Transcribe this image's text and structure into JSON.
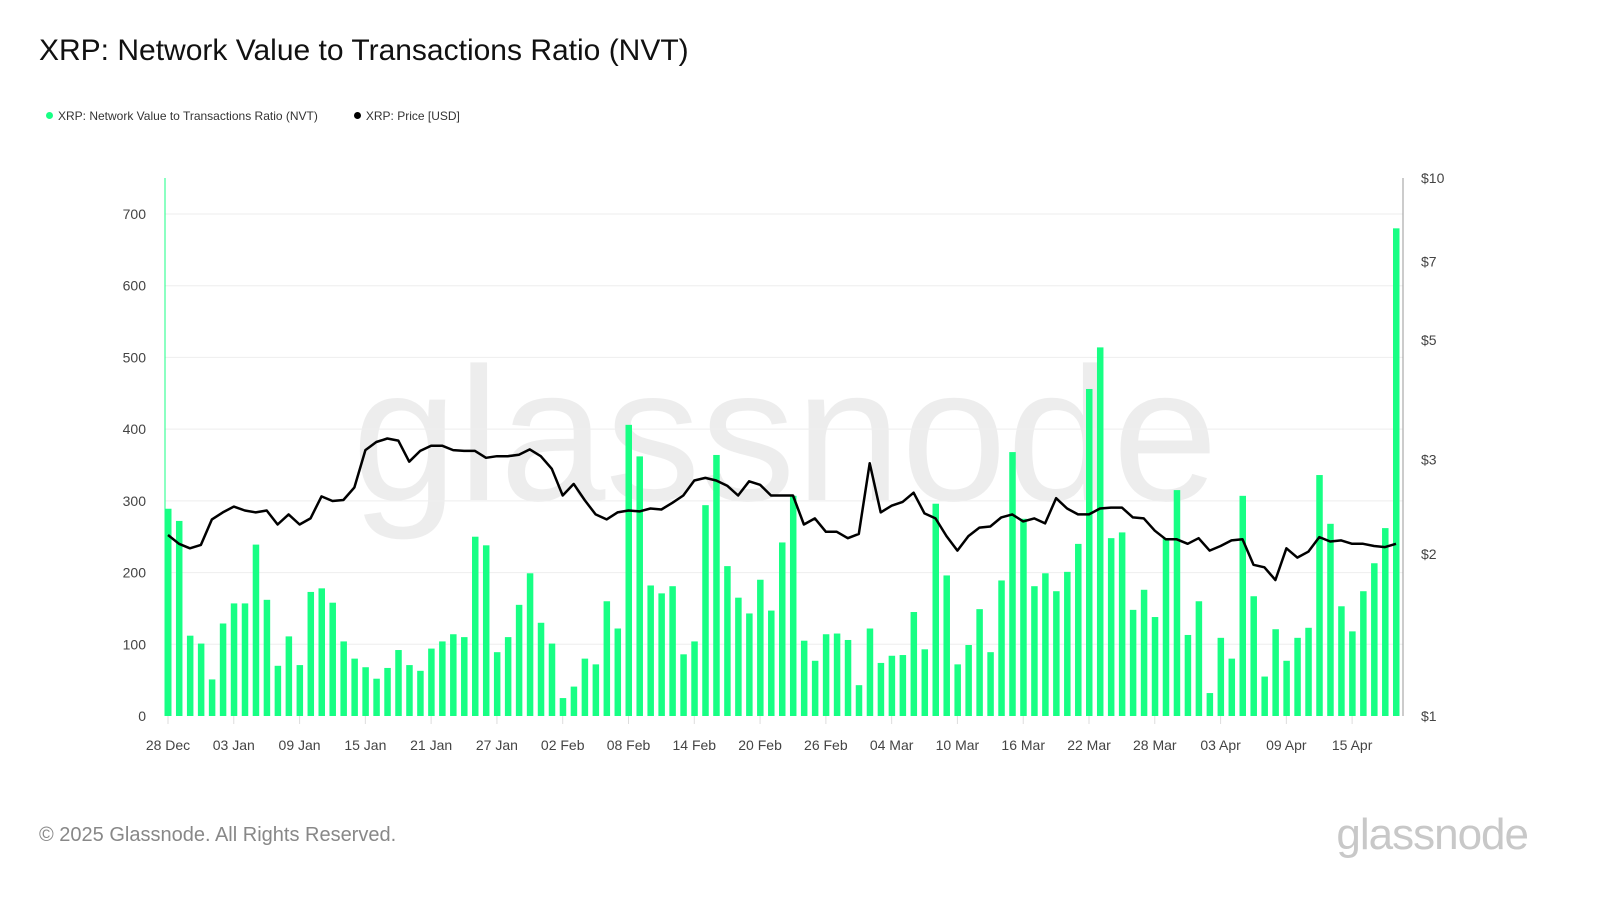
{
  "title": "XRP: Network Value to Transactions Ratio (NVT)",
  "footer": "© 2025 Glassnode. All Rights Reserved.",
  "logo": "glassnode",
  "watermark": "glassnode",
  "colors": {
    "nvt": "#17ff84",
    "price": "#000000"
  },
  "chart_data": {
    "type": "bar",
    "title": "XRP: Network Value to Transactions Ratio (NVT)",
    "legend_position": "top-left",
    "grid": true,
    "x_ticks": [
      "28 Dec",
      "03 Jan",
      "09 Jan",
      "15 Jan",
      "21 Jan",
      "27 Jan",
      "02 Feb",
      "08 Feb",
      "14 Feb",
      "20 Feb",
      "26 Feb",
      "04 Mar",
      "10 Mar",
      "16 Mar",
      "22 Mar",
      "28 Mar",
      "03 Apr",
      "09 Apr",
      "15 Apr"
    ],
    "y_left": {
      "range": [
        0,
        750
      ],
      "ticks": [
        "0",
        "100",
        "200",
        "300",
        "400",
        "500",
        "600",
        "700"
      ]
    },
    "y_right": {
      "scale": "log",
      "range": [
        1,
        10
      ],
      "ticks": [
        {
          "v": 1,
          "label": "$1"
        },
        {
          "v": 2,
          "label": "$2"
        },
        {
          "v": 3,
          "label": "$3"
        },
        {
          "v": 5,
          "label": "$5"
        },
        {
          "v": 7,
          "label": "$7"
        },
        {
          "v": 10,
          "label": "$10"
        }
      ]
    },
    "x": [
      "2024-12-28",
      "2024-12-29",
      "2024-12-30",
      "2024-12-31",
      "2025-01-01",
      "2025-01-02",
      "2025-01-03",
      "2025-01-04",
      "2025-01-05",
      "2025-01-06",
      "2025-01-07",
      "2025-01-08",
      "2025-01-09",
      "2025-01-10",
      "2025-01-11",
      "2025-01-12",
      "2025-01-13",
      "2025-01-14",
      "2025-01-15",
      "2025-01-16",
      "2025-01-17",
      "2025-01-18",
      "2025-01-19",
      "2025-01-20",
      "2025-01-21",
      "2025-01-22",
      "2025-01-23",
      "2025-01-24",
      "2025-01-25",
      "2025-01-26",
      "2025-01-27",
      "2025-01-28",
      "2025-01-29",
      "2025-01-30",
      "2025-01-31",
      "2025-02-01",
      "2025-02-02",
      "2025-02-03",
      "2025-02-04",
      "2025-02-05",
      "2025-02-06",
      "2025-02-07",
      "2025-02-08",
      "2025-02-09",
      "2025-02-10",
      "2025-02-11",
      "2025-02-12",
      "2025-02-13",
      "2025-02-14",
      "2025-02-15",
      "2025-02-16",
      "2025-02-17",
      "2025-02-18",
      "2025-02-19",
      "2025-02-20",
      "2025-02-21",
      "2025-02-22",
      "2025-02-23",
      "2025-02-24",
      "2025-02-25",
      "2025-02-26",
      "2025-02-27",
      "2025-02-28",
      "2025-03-01",
      "2025-03-02",
      "2025-03-03",
      "2025-03-04",
      "2025-03-05",
      "2025-03-06",
      "2025-03-07",
      "2025-03-08",
      "2025-03-09",
      "2025-03-10",
      "2025-03-11",
      "2025-03-12",
      "2025-03-13",
      "2025-03-14",
      "2025-03-15",
      "2025-03-16",
      "2025-03-17",
      "2025-03-18",
      "2025-03-19",
      "2025-03-20",
      "2025-03-21",
      "2025-03-22",
      "2025-03-23",
      "2025-03-24",
      "2025-03-25",
      "2025-03-26",
      "2025-03-27",
      "2025-03-28",
      "2025-03-29",
      "2025-03-30",
      "2025-03-31",
      "2025-04-01",
      "2025-04-02",
      "2025-04-03",
      "2025-04-04",
      "2025-04-05",
      "2025-04-06",
      "2025-04-07",
      "2025-04-08",
      "2025-04-09",
      "2025-04-10",
      "2025-04-11",
      "2025-04-12",
      "2025-04-13",
      "2025-04-14",
      "2025-04-15",
      "2025-04-16",
      "2025-04-17",
      "2025-04-18",
      "2025-04-19"
    ],
    "series": [
      {
        "name": "XRP: Network Value to Transactions Ratio (NVT)",
        "type": "bar",
        "axis": "left",
        "values": [
          289,
          272,
          112,
          101,
          51,
          129,
          157,
          157,
          239,
          162,
          70,
          111,
          71,
          173,
          178,
          158,
          104,
          80,
          68,
          52,
          67,
          92,
          71,
          63,
          94,
          104,
          114,
          110,
          250,
          238,
          89,
          110,
          155,
          199,
          130,
          101,
          25,
          41,
          80,
          72,
          160,
          122,
          406,
          362,
          182,
          171,
          181,
          86,
          104,
          294,
          364,
          209,
          165,
          143,
          190,
          147,
          242,
          307,
          105,
          77,
          114,
          115,
          106,
          43,
          122,
          74,
          84,
          85,
          145,
          93,
          296,
          196,
          72,
          99,
          149,
          89,
          189,
          368,
          275,
          181,
          199,
          174,
          201,
          240,
          456,
          514,
          248,
          256,
          148,
          176,
          138,
          248,
          315,
          113,
          160,
          32,
          109,
          80,
          307,
          167,
          55,
          121,
          77,
          109,
          123,
          336,
          268,
          153,
          118,
          174,
          213,
          262,
          680
        ]
      },
      {
        "name": "XRP: Price [USD]",
        "type": "line",
        "axis": "right",
        "values": [
          2.17,
          2.09,
          2.05,
          2.08,
          2.32,
          2.39,
          2.45,
          2.41,
          2.39,
          2.41,
          2.27,
          2.37,
          2.27,
          2.33,
          2.56,
          2.51,
          2.52,
          2.66,
          3.12,
          3.23,
          3.28,
          3.25,
          2.97,
          3.11,
          3.18,
          3.18,
          3.12,
          3.11,
          3.11,
          3.02,
          3.04,
          3.04,
          3.06,
          3.13,
          3.04,
          2.88,
          2.57,
          2.7,
          2.52,
          2.37,
          2.32,
          2.39,
          2.41,
          2.4,
          2.43,
          2.42,
          2.49,
          2.57,
          2.74,
          2.77,
          2.74,
          2.68,
          2.57,
          2.73,
          2.69,
          2.57,
          2.57,
          2.57,
          2.27,
          2.33,
          2.2,
          2.2,
          2.14,
          2.18,
          2.95,
          2.39,
          2.46,
          2.5,
          2.6,
          2.38,
          2.33,
          2.16,
          2.03,
          2.16,
          2.24,
          2.25,
          2.34,
          2.37,
          2.3,
          2.33,
          2.28,
          2.54,
          2.43,
          2.37,
          2.37,
          2.43,
          2.44,
          2.44,
          2.34,
          2.33,
          2.21,
          2.13,
          2.13,
          2.09,
          2.14,
          2.03,
          2.07,
          2.12,
          2.13,
          1.91,
          1.89,
          1.79,
          2.05,
          1.97,
          2.02,
          2.15,
          2.11,
          2.12,
          2.09,
          2.09,
          2.07,
          2.06,
          2.09
        ]
      }
    ]
  }
}
